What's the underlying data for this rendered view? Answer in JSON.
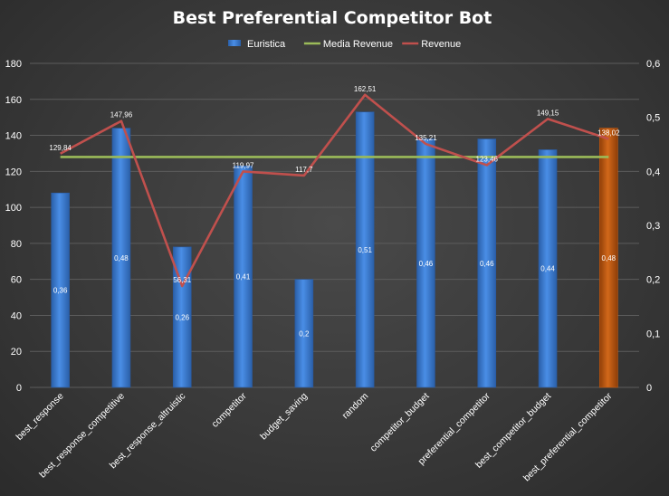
{
  "chart_data": {
    "type": "bar",
    "title": "Best Preferential Competitor Bot",
    "legend_position": "top",
    "grid": true,
    "categories": [
      "best_response",
      "best_response_competitive",
      "best_response_altruistic",
      "competitor",
      "budget_saving",
      "random",
      "competitor_budget",
      "preferential_competitor",
      "best_competitor_budget",
      "best_preferential_competitor"
    ],
    "y_left_ticks": [
      "0",
      "20",
      "40",
      "60",
      "80",
      "100",
      "120",
      "140",
      "160",
      "180"
    ],
    "y_right_ticks": [
      "0",
      "0,1",
      "0,2",
      "0,3",
      "0,4",
      "0,5",
      "0,6"
    ],
    "ylim_left": [
      0,
      180
    ],
    "ylim_right": [
      0,
      0.6
    ],
    "series": [
      {
        "name": "Euristica",
        "type": "bar",
        "axis": "left",
        "values": [
          108,
          144,
          78,
          123,
          60,
          153,
          138,
          138,
          132,
          144
        ],
        "labels": [
          "0,36",
          "0,48",
          "0,26",
          "0,41",
          "0,2",
          "0,51",
          "0,46",
          "0,46",
          "0,44",
          "0,48"
        ],
        "color": "#3e7fd6",
        "highlight_color": "#c55a11"
      },
      {
        "name": "Media Revenue",
        "type": "line",
        "axis": "left",
        "values": [
          128,
          128,
          128,
          128,
          128,
          128,
          128,
          128,
          128,
          128
        ],
        "color": "#9bbb59"
      },
      {
        "name": "Revenue",
        "type": "line",
        "axis": "left",
        "values": [
          129.84,
          147.96,
          56.31,
          119.97,
          117.7,
          162.51,
          135.21,
          123.46,
          149.15,
          138.02
        ],
        "labels": [
          "129,84",
          "147,96",
          "56,31",
          "119,97",
          "117,7",
          "162,51",
          "135,21",
          "123,46",
          "149,15",
          "138,02"
        ],
        "color": "#c0504d"
      }
    ]
  }
}
